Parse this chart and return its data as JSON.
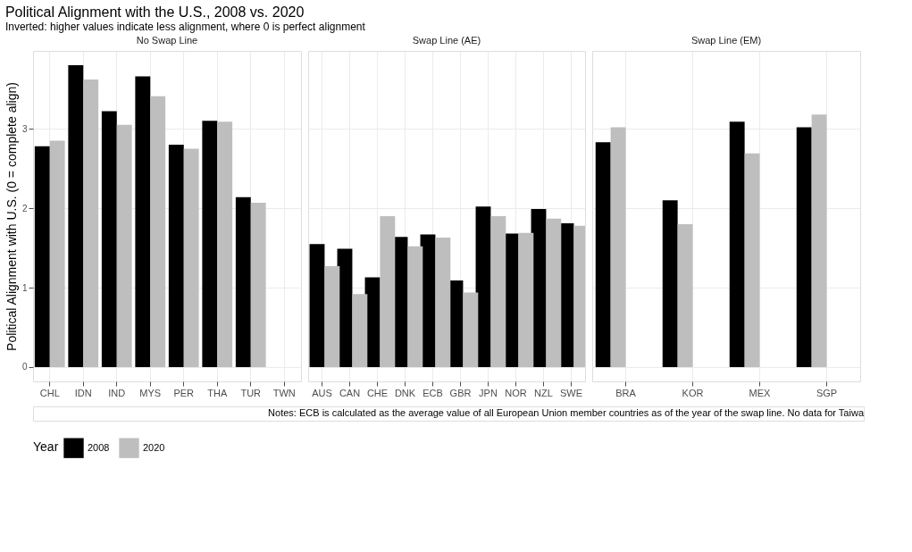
{
  "chart_data": [
    {
      "type": "bar",
      "title": "Political Alignment with the U.S., 2008 vs. 2020",
      "subtitle": "Inverted: higher values indicate less alignment, where 0 is perfect alignment",
      "ylabel": "Political Alignment with U.S. (0 = complete align)",
      "legend_title": "Year",
      "legend": "bottom",
      "grid": true,
      "annotations": [
        "No Swap Line",
        "Notes: ECB is calculated as the average value of all European Union member countries as of the year of the swap line. No data for Taiwa"
      ],
      "categories": [
        "CHL",
        "IDN",
        "IND",
        "MYS",
        "PER",
        "THA",
        "TUR",
        "TWN"
      ],
      "series": [
        {
          "name": "2008",
          "color": "#000000",
          "values": [
            2.78,
            3.8,
            3.22,
            3.66,
            2.8,
            3.1,
            2.14,
            null
          ]
        },
        {
          "name": "2020",
          "color": "#bebebe",
          "values": [
            2.85,
            3.62,
            3.05,
            3.41,
            2.75,
            3.09,
            2.07,
            null
          ]
        }
      ],
      "ylim": [
        -0.18,
        3.98
      ],
      "yticks": [
        0,
        1,
        2,
        3
      ]
    },
    {
      "type": "bar",
      "grid": true,
      "tick_labels": "x",
      "annotations": [
        "Swap Line (AE)"
      ],
      "categories": [
        "AUS",
        "CAN",
        "CHE",
        "DNK",
        "ECB",
        "GBR",
        "JPN",
        "NOR",
        "NZL",
        "SWE"
      ],
      "series": [
        {
          "name": "2008",
          "color": "#000000",
          "values": [
            1.55,
            1.49,
            1.13,
            1.64,
            1.67,
            1.09,
            2.02,
            1.68,
            1.99,
            1.81
          ]
        },
        {
          "name": "2020",
          "color": "#bebebe",
          "values": [
            1.27,
            0.92,
            1.9,
            1.52,
            1.63,
            0.94,
            1.9,
            1.69,
            1.87,
            1.78
          ]
        }
      ],
      "ylim": [
        -0.18,
        3.98
      ],
      "yticks": [
        0,
        1,
        2,
        3
      ]
    },
    {
      "type": "bar",
      "grid": true,
      "tick_labels": "x",
      "annotations": [
        "Swap Line (EM)"
      ],
      "categories": [
        "BRA",
        "KOR",
        "MEX",
        "SGP"
      ],
      "series": [
        {
          "name": "2008",
          "color": "#000000",
          "values": [
            2.83,
            2.1,
            3.09,
            3.02
          ]
        },
        {
          "name": "2020",
          "color": "#bebebe",
          "values": [
            3.02,
            1.8,
            2.69,
            3.18
          ]
        }
      ],
      "ylim": [
        -0.18,
        3.98
      ],
      "yticks": [
        0,
        1,
        2,
        3
      ]
    }
  ]
}
